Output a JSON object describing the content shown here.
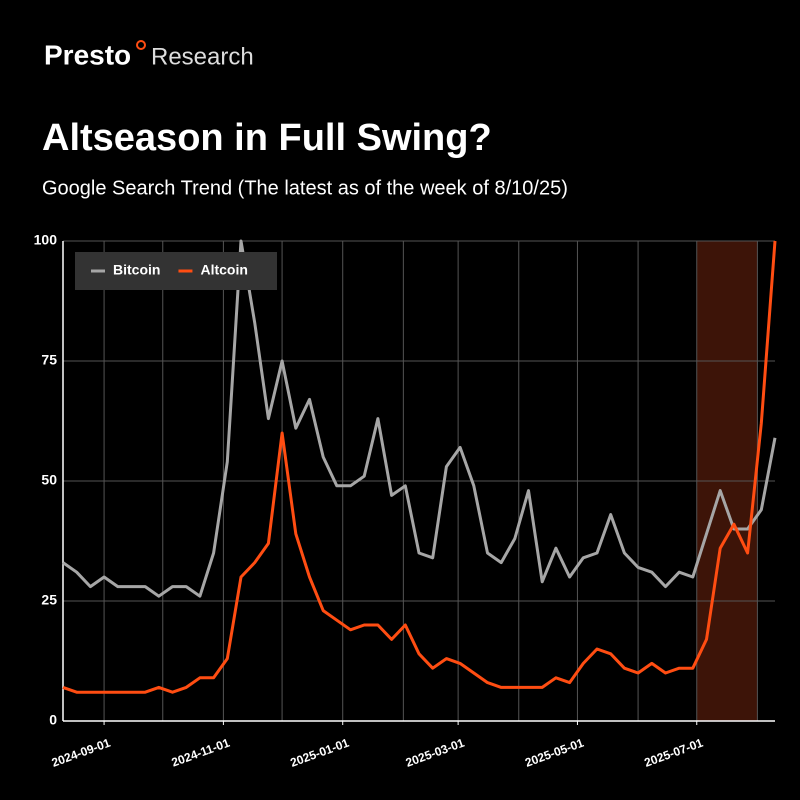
{
  "header": {
    "brand": "Presto",
    "brand_suffix": "Research"
  },
  "chart_data": {
    "type": "line",
    "title": "Altseason in Full Swing?",
    "subtitle": "Google Search Trend (The latest as of the week of 8/10/25)",
    "x": [
      "2024-08-11",
      "2024-08-18",
      "2024-08-25",
      "2024-09-01",
      "2024-09-08",
      "2024-09-15",
      "2024-09-22",
      "2024-09-29",
      "2024-10-06",
      "2024-10-13",
      "2024-10-20",
      "2024-10-27",
      "2024-11-03",
      "2024-11-10",
      "2024-11-17",
      "2024-11-24",
      "2024-12-01",
      "2024-12-08",
      "2024-12-15",
      "2024-12-22",
      "2024-12-29",
      "2025-01-05",
      "2025-01-12",
      "2025-01-19",
      "2025-01-26",
      "2025-02-02",
      "2025-02-09",
      "2025-02-16",
      "2025-02-23",
      "2025-03-02",
      "2025-03-09",
      "2025-03-16",
      "2025-03-23",
      "2025-03-30",
      "2025-04-06",
      "2025-04-13",
      "2025-04-20",
      "2025-04-27",
      "2025-05-04",
      "2025-05-11",
      "2025-05-18",
      "2025-05-25",
      "2025-06-01",
      "2025-06-08",
      "2025-06-15",
      "2025-06-22",
      "2025-06-29",
      "2025-07-06",
      "2025-07-13",
      "2025-07-20",
      "2025-07-27",
      "2025-08-03",
      "2025-08-10"
    ],
    "series": [
      {
        "name": "Bitcoin",
        "color": "#a6a6a6",
        "values": [
          33,
          31,
          28,
          30,
          28,
          28,
          28,
          26,
          28,
          28,
          26,
          35,
          54,
          100,
          83,
          63,
          75,
          61,
          67,
          55,
          49,
          49,
          51,
          63,
          47,
          49,
          35,
          34,
          53,
          57,
          49,
          35,
          33,
          38,
          48,
          29,
          36,
          30,
          34,
          35,
          43,
          35,
          32,
          31,
          28,
          31,
          30,
          39,
          48,
          40,
          40,
          44,
          59
        ]
      },
      {
        "name": "Altcoin",
        "color": "#ff4d12",
        "values": [
          7,
          6,
          6,
          6,
          6,
          6,
          6,
          7,
          6,
          7,
          9,
          9,
          13,
          30,
          33,
          37,
          60,
          39,
          30,
          23,
          21,
          19,
          20,
          20,
          17,
          20,
          14,
          11,
          13,
          12,
          10,
          8,
          7,
          7,
          7,
          7,
          9,
          8,
          12,
          15,
          14,
          11,
          10,
          12,
          10,
          11,
          11,
          17,
          36,
          41,
          35,
          62,
          100
        ]
      }
    ],
    "xlim": [
      "2024-08-11",
      "2025-08-10"
    ],
    "xticks": [
      "2024-09-01",
      "2024-11-01",
      "2025-01-01",
      "2025-03-01",
      "2025-05-01",
      "2025-07-01"
    ],
    "x_grid": [
      "2024-09-01",
      "2024-10-01",
      "2024-11-01",
      "2024-12-01",
      "2025-01-01",
      "2025-02-01",
      "2025-03-01",
      "2025-04-01",
      "2025-05-01",
      "2025-06-01",
      "2025-07-01",
      "2025-08-01"
    ],
    "ylim": [
      0,
      100
    ],
    "yticks": [
      0,
      25,
      50,
      75,
      100
    ],
    "highlight": {
      "range": [
        "2025-07-01",
        "2025-08-01"
      ],
      "color": "#3d1408"
    },
    "grid": true,
    "legend": "upper left"
  }
}
